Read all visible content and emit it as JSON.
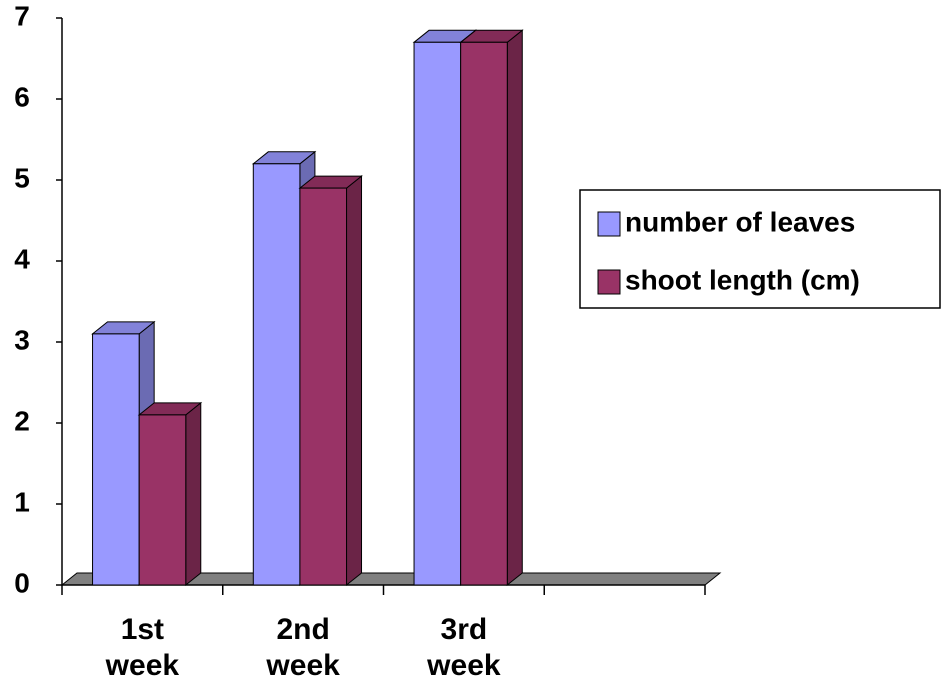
{
  "chart_data": {
    "type": "bar3d",
    "categories": [
      "1st week",
      "2nd week",
      "3rd week",
      null
    ],
    "series": [
      {
        "name": "number of leaves",
        "color": "#9999ff",
        "values": [
          3.1,
          5.2,
          6.7,
          null
        ]
      },
      {
        "name": "shoot length (cm)",
        "color": "#993366",
        "values": [
          2.1,
          4.9,
          6.7,
          null
        ]
      }
    ],
    "ylim": [
      0,
      7
    ],
    "yticks": [
      0,
      1,
      2,
      3,
      4,
      5,
      6,
      7
    ],
    "grid": false,
    "legend": "right"
  }
}
